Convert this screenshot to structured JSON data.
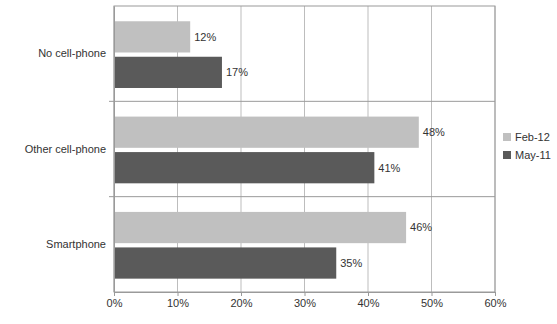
{
  "chart_data": {
    "type": "bar",
    "orientation": "horizontal",
    "categories": [
      "No cell-phone",
      "Other cell-phone",
      "Smartphone"
    ],
    "series": [
      {
        "name": "Feb-12",
        "color": "#c0c0c0",
        "values": [
          12,
          48,
          46
        ],
        "value_labels": [
          "12%",
          "48%",
          "46%"
        ]
      },
      {
        "name": "May-11",
        "color": "#5a5a5a",
        "values": [
          17,
          41,
          35
        ],
        "value_labels": [
          "17%",
          "41%",
          "35%"
        ]
      }
    ],
    "xlim": [
      0,
      60
    ],
    "xticks": [
      {
        "value": 0,
        "label": "0%"
      },
      {
        "value": 10,
        "label": "10%"
      },
      {
        "value": 20,
        "label": "20%"
      },
      {
        "value": 30,
        "label": "30%"
      },
      {
        "value": 40,
        "label": "40%"
      },
      {
        "value": 50,
        "label": "50%"
      },
      {
        "value": 60,
        "label": "60%"
      }
    ],
    "grid": true,
    "data_labels": true,
    "legend": "right"
  }
}
